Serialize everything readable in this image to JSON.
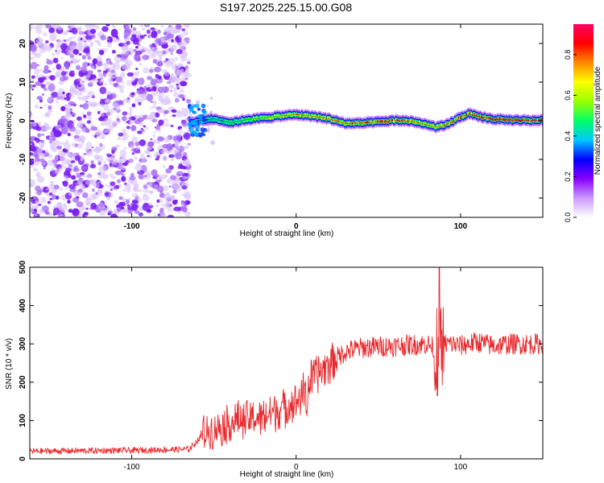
{
  "title": "S197.2025.225.15.00.G08",
  "colors": {
    "snr_line": "#e8282c",
    "background_speckle": "#8a2be2",
    "axis": "#000000"
  },
  "chart_data": [
    {
      "type": "heatmap",
      "name": "spectrogram",
      "title": "S197.2025.225.15.00.G08",
      "xlabel": "Height of straight line (km)",
      "ylabel": "Frequency (Hz)",
      "xlim": [
        -162,
        150
      ],
      "ylim": [
        -25,
        25
      ],
      "xticks": [
        -100,
        0,
        100
      ],
      "yticks": [
        -20,
        -10,
        0,
        10,
        20
      ],
      "noise_region_x": [
        -162,
        -65
      ],
      "ridge": {
        "x": [
          -65,
          -60,
          -50,
          -40,
          -30,
          -20,
          -10,
          0,
          10,
          20,
          30,
          40,
          50,
          60,
          70,
          75,
          80,
          85,
          90,
          95,
          100,
          105,
          110,
          120,
          130,
          140,
          150
        ],
        "freq": [
          -1,
          0,
          0.5,
          -0.5,
          0.3,
          0.7,
          1.2,
          1.6,
          1.2,
          0.5,
          -0.7,
          -0.6,
          -0.3,
          0.1,
          -0.1,
          -0.6,
          -1.1,
          -1.6,
          -1.3,
          -0.2,
          1.0,
          1.8,
          1.2,
          0.4,
          0.2,
          0.1,
          0.1
        ],
        "amplitude": [
          0.2,
          0.35,
          0.45,
          0.5,
          0.6,
          0.65,
          0.72,
          0.8,
          0.78,
          0.82,
          0.85,
          0.88,
          0.9,
          0.92,
          0.85,
          0.8,
          0.75,
          0.78,
          0.82,
          0.85,
          0.88,
          0.9,
          0.92,
          0.95,
          0.97,
          0.98,
          0.97
        ]
      },
      "colorbar": {
        "label": "Normalized spectral amplitude",
        "range": [
          0.0,
          0.95
        ],
        "ticks": [
          0.0,
          0.2,
          0.4,
          0.6,
          0.8
        ],
        "tick_labels": [
          "0.0",
          "0.2",
          "0.4",
          "0.6",
          "0.8"
        ],
        "colors": [
          "#ffffff",
          "#cc99ff",
          "#8800ff",
          "#0000ff",
          "#00c8ff",
          "#00ff66",
          "#99ff00",
          "#ffff00",
          "#ff8800",
          "#ff0000",
          "#ff0066"
        ]
      }
    },
    {
      "type": "line",
      "name": "snr",
      "xlabel": "Height of straight line (km)",
      "ylabel": "SNR (10 * v/v)",
      "xlim": [
        -162,
        150
      ],
      "ylim": [
        0,
        500
      ],
      "xticks": [
        -100,
        0,
        100
      ],
      "yticks": [
        0,
        100,
        200,
        300,
        400,
        500
      ],
      "trend": {
        "x": [
          -162,
          -100,
          -65,
          -55,
          -40,
          -20,
          0,
          5,
          10,
          20,
          30,
          40,
          60,
          80,
          85,
          90,
          95,
          100,
          110,
          120,
          130,
          140,
          150
        ],
        "y": [
          20,
          22,
          25,
          70,
          95,
          110,
          150,
          175,
          210,
          250,
          280,
          290,
          295,
          300,
          285,
          300,
          300,
          295,
          305,
          295,
          300,
          300,
          300
        ]
      },
      "features": [
        {
          "label": "spike",
          "x": 87,
          "y": 500
        },
        {
          "label": "dip",
          "x": 86,
          "y": 165
        }
      ]
    }
  ]
}
